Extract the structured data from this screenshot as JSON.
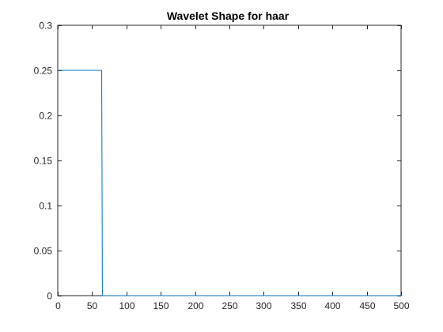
{
  "chart_data": {
    "type": "line",
    "title": "Wavelet Shape for haar",
    "xlabel": "",
    "ylabel": "",
    "xlim": [
      0,
      500
    ],
    "ylim": [
      0,
      0.3
    ],
    "xticks": [
      0,
      50,
      100,
      150,
      200,
      250,
      300,
      350,
      400,
      450,
      500
    ],
    "yticks": [
      0,
      0.05,
      0.1,
      0.15,
      0.2,
      0.25,
      0.3
    ],
    "xtick_labels": [
      "0",
      "50",
      "100",
      "150",
      "200",
      "250",
      "300",
      "350",
      "400",
      "450",
      "500"
    ],
    "ytick_labels": [
      "0",
      "0.05",
      "0.1",
      "0.15",
      "0.2",
      "0.25",
      "0.3"
    ],
    "grid": false,
    "legend": "none",
    "series": [
      {
        "color": "#0072BD",
        "x": [
          0,
          64,
          65,
          500
        ],
        "y": [
          0.25,
          0.25,
          0,
          0
        ]
      }
    ]
  }
}
